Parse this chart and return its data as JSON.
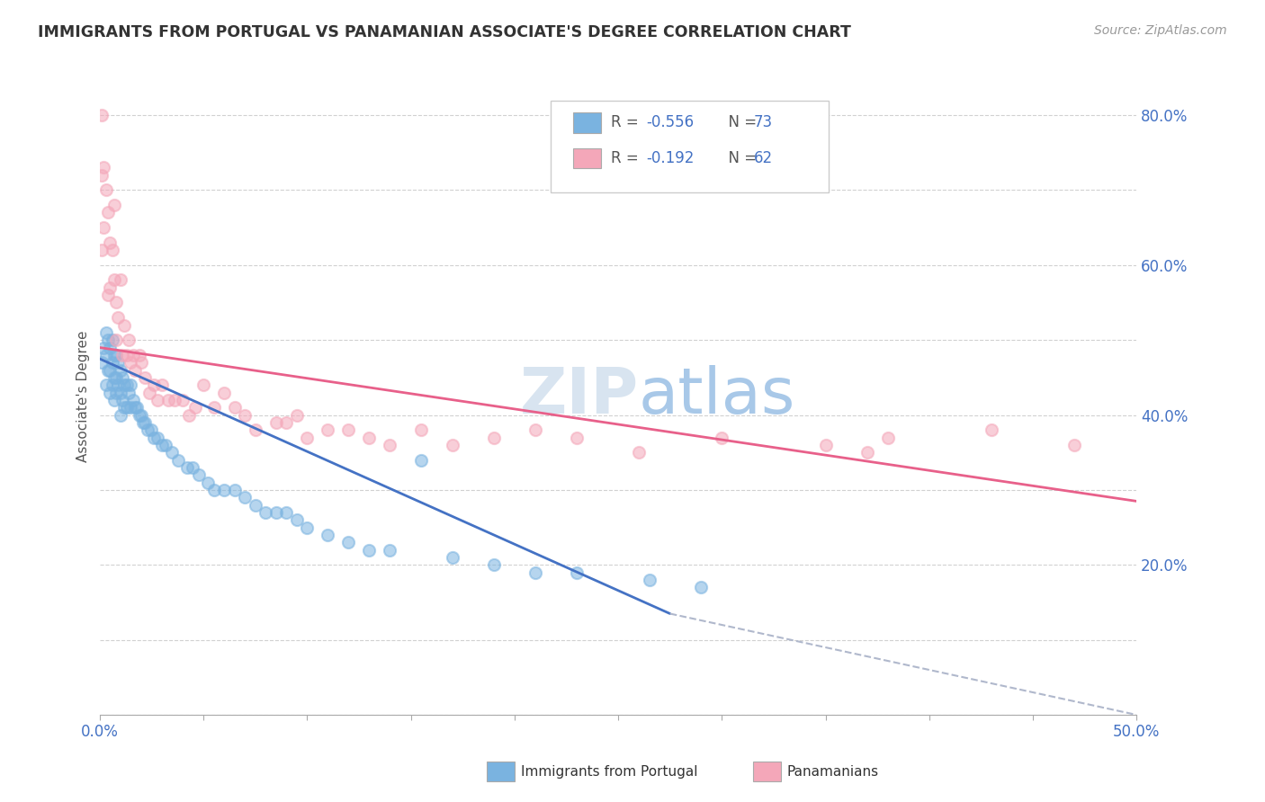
{
  "title": "IMMIGRANTS FROM PORTUGAL VS PANAMANIAN ASSOCIATE'S DEGREE CORRELATION CHART",
  "source": "Source: ZipAtlas.com",
  "ylabel": "Associate's Degree",
  "xlim": [
    0.0,
    0.5
  ],
  "ylim": [
    0.0,
    0.85
  ],
  "x_ticks": [
    0.0,
    0.05,
    0.1,
    0.15,
    0.2,
    0.25,
    0.3,
    0.35,
    0.4,
    0.45,
    0.5
  ],
  "y_ticks": [
    0.0,
    0.1,
    0.2,
    0.3,
    0.4,
    0.5,
    0.6,
    0.7,
    0.8
  ],
  "blue_color": "#7ab3e0",
  "pink_color": "#f4a7b9",
  "blue_line_color": "#4472c4",
  "pink_line_color": "#e8608a",
  "dashed_line_color": "#b0b8cc",
  "legend_R_blue": "-0.556",
  "legend_N_blue": "73",
  "legend_R_pink": "-0.192",
  "legend_N_pink": "62",
  "watermark_zip": "ZIP",
  "watermark_atlas": "atlas",
  "blue_scatter_x": [
    0.001,
    0.002,
    0.003,
    0.003,
    0.003,
    0.004,
    0.004,
    0.005,
    0.005,
    0.005,
    0.006,
    0.006,
    0.006,
    0.007,
    0.007,
    0.007,
    0.008,
    0.008,
    0.008,
    0.009,
    0.009,
    0.01,
    0.01,
    0.01,
    0.011,
    0.011,
    0.012,
    0.012,
    0.013,
    0.013,
    0.014,
    0.015,
    0.015,
    0.016,
    0.017,
    0.018,
    0.019,
    0.02,
    0.021,
    0.022,
    0.023,
    0.025,
    0.026,
    0.028,
    0.03,
    0.032,
    0.035,
    0.038,
    0.042,
    0.045,
    0.048,
    0.052,
    0.055,
    0.06,
    0.065,
    0.07,
    0.075,
    0.08,
    0.085,
    0.09,
    0.095,
    0.1,
    0.11,
    0.12,
    0.13,
    0.14,
    0.155,
    0.17,
    0.19,
    0.21,
    0.23,
    0.265,
    0.29
  ],
  "blue_scatter_y": [
    0.47,
    0.49,
    0.51,
    0.48,
    0.44,
    0.5,
    0.46,
    0.49,
    0.46,
    0.43,
    0.5,
    0.47,
    0.44,
    0.48,
    0.45,
    0.42,
    0.48,
    0.45,
    0.43,
    0.47,
    0.44,
    0.46,
    0.43,
    0.4,
    0.45,
    0.42,
    0.44,
    0.41,
    0.44,
    0.41,
    0.43,
    0.44,
    0.41,
    0.42,
    0.41,
    0.41,
    0.4,
    0.4,
    0.39,
    0.39,
    0.38,
    0.38,
    0.37,
    0.37,
    0.36,
    0.36,
    0.35,
    0.34,
    0.33,
    0.33,
    0.32,
    0.31,
    0.3,
    0.3,
    0.3,
    0.29,
    0.28,
    0.27,
    0.27,
    0.27,
    0.26,
    0.25,
    0.24,
    0.23,
    0.22,
    0.22,
    0.34,
    0.21,
    0.2,
    0.19,
    0.19,
    0.18,
    0.17
  ],
  "pink_scatter_x": [
    0.001,
    0.001,
    0.001,
    0.002,
    0.002,
    0.003,
    0.004,
    0.004,
    0.005,
    0.005,
    0.006,
    0.007,
    0.007,
    0.008,
    0.008,
    0.009,
    0.01,
    0.011,
    0.012,
    0.013,
    0.014,
    0.015,
    0.016,
    0.017,
    0.019,
    0.02,
    0.022,
    0.024,
    0.026,
    0.028,
    0.03,
    0.033,
    0.036,
    0.04,
    0.043,
    0.046,
    0.05,
    0.055,
    0.06,
    0.065,
    0.07,
    0.075,
    0.085,
    0.09,
    0.095,
    0.1,
    0.11,
    0.12,
    0.13,
    0.14,
    0.155,
    0.17,
    0.19,
    0.21,
    0.23,
    0.26,
    0.3,
    0.35,
    0.37,
    0.38,
    0.43,
    0.47
  ],
  "pink_scatter_y": [
    0.8,
    0.72,
    0.62,
    0.73,
    0.65,
    0.7,
    0.67,
    0.56,
    0.63,
    0.57,
    0.62,
    0.68,
    0.58,
    0.55,
    0.5,
    0.53,
    0.58,
    0.48,
    0.52,
    0.48,
    0.5,
    0.47,
    0.48,
    0.46,
    0.48,
    0.47,
    0.45,
    0.43,
    0.44,
    0.42,
    0.44,
    0.42,
    0.42,
    0.42,
    0.4,
    0.41,
    0.44,
    0.41,
    0.43,
    0.41,
    0.4,
    0.38,
    0.39,
    0.39,
    0.4,
    0.37,
    0.38,
    0.38,
    0.37,
    0.36,
    0.38,
    0.36,
    0.37,
    0.38,
    0.37,
    0.35,
    0.37,
    0.36,
    0.35,
    0.37,
    0.38,
    0.36
  ],
  "blue_line_x": [
    0.0,
    0.275
  ],
  "blue_line_y": [
    0.475,
    0.135
  ],
  "pink_line_x": [
    0.0,
    0.5
  ],
  "pink_line_y": [
    0.49,
    0.285
  ],
  "dashed_line_x": [
    0.275,
    0.5
  ],
  "dashed_line_y": [
    0.135,
    0.0
  ]
}
